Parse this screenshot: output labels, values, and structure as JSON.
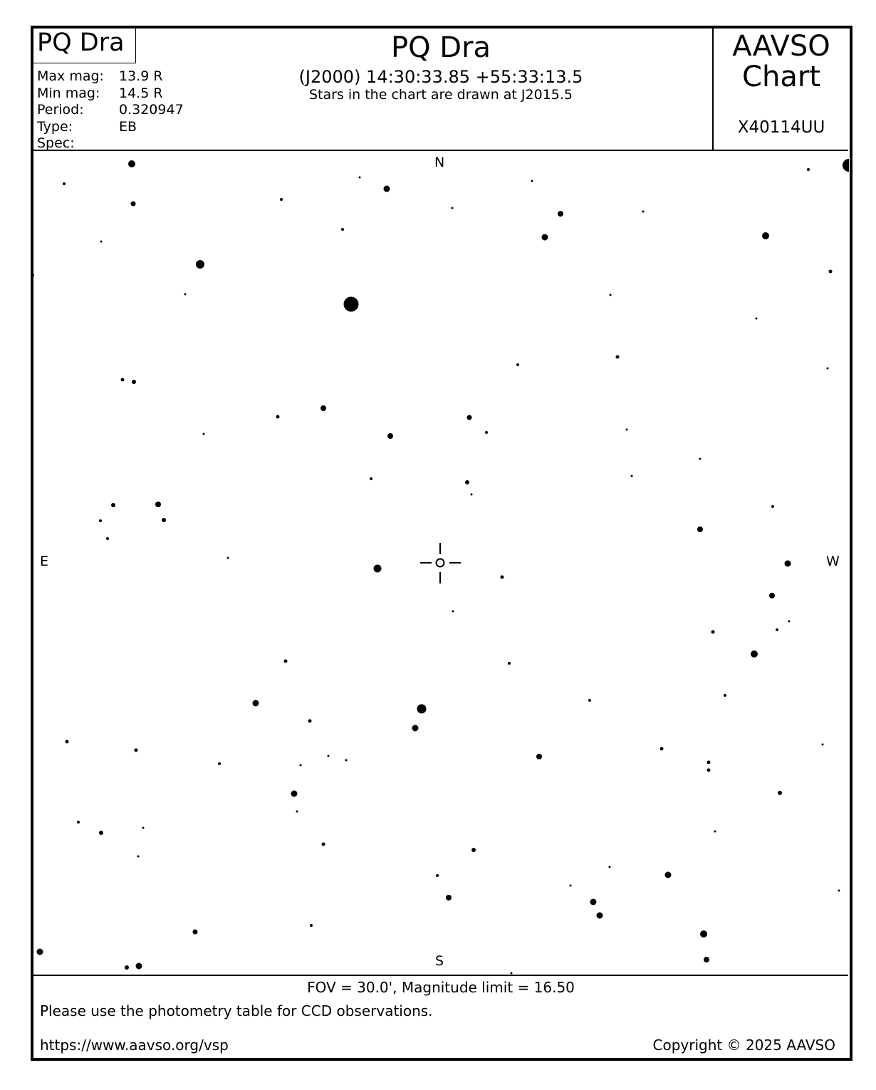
{
  "header": {
    "star_name_box": "PQ Dra",
    "title": "PQ Dra",
    "coordinates": "(J2000) 14:30:33.85 +55:33:13.5",
    "epoch_note": "Stars in the chart are drawn at J2015.5",
    "chart_label_line1": "AAVSO",
    "chart_label_line2": "Chart",
    "chart_id": "X40114UU",
    "info": [
      {
        "label": "Max mag:",
        "value": "13.9 R"
      },
      {
        "label": "Min mag:",
        "value": "14.5 R"
      },
      {
        "label": "Period:",
        "value": "0.320947"
      },
      {
        "label": "Type:",
        "value": "EB"
      },
      {
        "label": "Spec:",
        "value": ""
      }
    ]
  },
  "compass": {
    "north": "N",
    "south": "S",
    "east": "E",
    "west": "W"
  },
  "footer": {
    "fov": "FOV = 30.0', Magnitude limit = 16.50",
    "note": "Please use the photometry table for CCD observations.",
    "url": "https://www.aavso.org/vsp",
    "copyright": "Copyright © 2025 AAVSO"
  },
  "colors": {
    "ink": "#000000",
    "background": "#ffffff"
  }
}
